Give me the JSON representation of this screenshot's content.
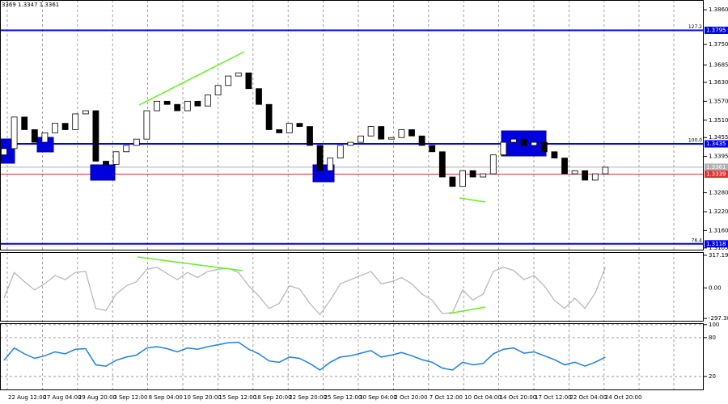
{
  "chart_data": {
    "type": "candlestick",
    "header_text": "3369 1.3347 1.3361",
    "open": [
      1.34,
      1.342,
      1.352,
      1.348,
      1.344,
      1.347,
      1.35,
      1.348,
      1.353,
      1.354,
      1.338,
      1.337,
      1.341,
      1.343,
      1.345,
      1.354,
      1.357,
      1.356,
      1.354,
      1.357,
      1.3555,
      1.359,
      1.362,
      1.365,
      1.366,
      1.361,
      1.356,
      1.348,
      1.347,
      1.35,
      1.349,
      1.343,
      1.335,
      1.339,
      1.343,
      1.344,
      1.346,
      1.349,
      1.345,
      1.3455,
      1.348,
      1.346,
      1.343,
      1.341,
      1.333,
      1.33,
      1.335,
      1.333,
      1.334,
      1.34,
      1.344,
      1.345,
      1.343,
      1.344,
      1.341,
      1.339,
      1.334,
      1.335,
      1.332,
      1.334
    ],
    "close": [
      1.342,
      1.352,
      1.348,
      1.344,
      1.347,
      1.35,
      1.348,
      1.353,
      1.354,
      1.338,
      1.337,
      1.341,
      1.343,
      1.345,
      1.354,
      1.357,
      1.356,
      1.354,
      1.357,
      1.3555,
      1.359,
      1.362,
      1.365,
      1.366,
      1.361,
      1.356,
      1.348,
      1.347,
      1.35,
      1.349,
      1.343,
      1.335,
      1.339,
      1.343,
      1.344,
      1.346,
      1.349,
      1.345,
      1.3455,
      1.348,
      1.346,
      1.343,
      1.341,
      1.333,
      1.33,
      1.335,
      1.333,
      1.334,
      1.34,
      1.344,
      1.345,
      1.343,
      1.344,
      1.341,
      1.339,
      1.334,
      1.335,
      1.332,
      1.334,
      1.3361
    ],
    "ylim": [
      1.3097,
      1.3891
    ],
    "yticks": [
      {
        "value": 1.386,
        "label": "1.3860"
      },
      {
        "value": 1.375,
        "label": "1.3750"
      },
      1.3685,
      {
        "value": 1.363,
        "label": "1.3630"
      },
      {
        "value": 1.357,
        "label": "1.3570"
      },
      {
        "value": 1.351,
        "label": "1.3510"
      },
      1.3455,
      1.3395,
      {
        "value": 1.328,
        "label": "1.3280"
      },
      {
        "value": 1.322,
        "label": "1.3220"
      },
      {
        "value": 1.316,
        "label": "1.3160"
      },
      1.3105
    ],
    "levels": [
      {
        "name": "127.2",
        "value": 1.3795,
        "color": "#0000ee"
      },
      {
        "name": "100.0",
        "value": 1.3435,
        "color": "#0000ee"
      },
      {
        "name": "76.4",
        "value": 1.3118,
        "color": "#0000ee"
      },
      {
        "value": 1.3361,
        "color": "#b0b0b0"
      },
      {
        "value": 1.3339,
        "color": "#e03030"
      }
    ],
    "time_labels": [
      "22 Aug 12:00",
      "27 Aug 04:00",
      "29 Aug 20:00",
      "3 Sep 12:00",
      "8 Sep 04:00",
      "10 Sep 20:00",
      "15 Sep 12:00",
      "18 Sep 20:00",
      "22 Sep 20:00",
      "25 Sep 12:00",
      "30 Sep 04:00",
      "2 Oct 20:00",
      "7 Oct 12:00",
      "10 Oct 04:00",
      "14 Oct 20:00",
      "17 Oct 12:00",
      "22 Oct 04:00",
      "24 Oct 20:00"
    ],
    "cci": {
      "color": "#b4b4b4",
      "ylim": [
        -320,
        340
      ],
      "yticks": [
        317.1935,
        {
          "value": 0,
          "label": "0.00"
        },
        -297.386
      ],
      "values": [
        -100,
        150,
        60,
        -20,
        40,
        120,
        80,
        150,
        160,
        -200,
        -220,
        -60,
        20,
        60,
        180,
        200,
        140,
        80,
        150,
        100,
        160,
        180,
        190,
        150,
        20,
        -80,
        -200,
        -150,
        20,
        -10,
        -150,
        -260,
        -120,
        40,
        80,
        120,
        160,
        40,
        60,
        100,
        40,
        -60,
        -120,
        -250,
        -240,
        -20,
        -120,
        -60,
        160,
        200,
        170,
        80,
        120,
        20,
        -120,
        -200,
        -100,
        -200,
        -50,
        200
      ]
    },
    "rsi": {
      "color": "#1e7fe0",
      "ylim": [
        0,
        101
      ],
      "yticks": [
        100,
        80,
        20
      ],
      "values": [
        45,
        64,
        55,
        48,
        52,
        58,
        55,
        62,
        63,
        38,
        36,
        45,
        50,
        53,
        64,
        66,
        63,
        58,
        64,
        62,
        66,
        69,
        72,
        73,
        62,
        55,
        44,
        42,
        50,
        48,
        40,
        30,
        42,
        50,
        52,
        56,
        60,
        50,
        53,
        57,
        52,
        46,
        42,
        33,
        30,
        42,
        38,
        40,
        55,
        62,
        64,
        56,
        58,
        52,
        46,
        38,
        42,
        36,
        42,
        50
      ]
    }
  }
}
